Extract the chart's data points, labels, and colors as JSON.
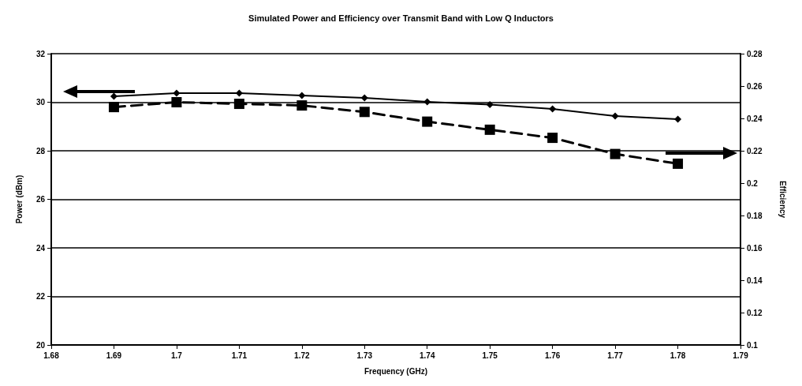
{
  "chart_data": {
    "type": "line",
    "title": "Simulated Power and Efficiency over Transmit Band with Low Q Inductors",
    "xlabel": "Frequency (GHz)",
    "ylabel": "Power (dBm)",
    "y2label": "Efficiency",
    "x": [
      1.69,
      1.7,
      1.71,
      1.72,
      1.73,
      1.74,
      1.75,
      1.76,
      1.77,
      1.78
    ],
    "series": [
      {
        "color": "#000000",
        "marker": "diamond",
        "line_style": "solid",
        "values": [
          30.24,
          30.37,
          30.37,
          30.28,
          30.18,
          30.02,
          29.9,
          29.72,
          29.43,
          29.3
        ]
      },
      {
        "color": "#000000",
        "marker": "square",
        "line_style": "dashed",
        "axis": "y2",
        "values": [
          0.247,
          0.25,
          0.249,
          0.248,
          0.244,
          0.238,
          0.233,
          0.228,
          0.218,
          0.212
        ]
      }
    ],
    "xlim": [
      1.68,
      1.79
    ],
    "xticks": [
      1.68,
      1.69,
      1.7,
      1.71,
      1.72,
      1.73,
      1.74,
      1.75,
      1.76,
      1.77,
      1.78,
      1.79
    ],
    "ylim": [
      20,
      32
    ],
    "yticks": [
      20,
      22,
      24,
      26,
      28,
      30,
      32
    ],
    "y2lim": [
      0.1,
      0.28
    ],
    "y2ticks": [
      0.1,
      0.12,
      0.14,
      0.16,
      0.18,
      0.2,
      0.22,
      0.24,
      0.26,
      0.28
    ],
    "grid": "y"
  }
}
